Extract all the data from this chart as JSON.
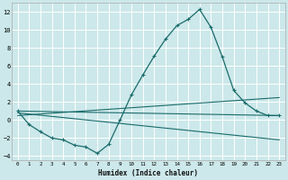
{
  "xlabel": "Humidex (Indice chaleur)",
  "ylabel": "",
  "background_color": "#cce8ea",
  "line_color": "#1a6b6b",
  "grid_color": "#ffffff",
  "xlim": [
    -0.5,
    23.5
  ],
  "ylim": [
    -4.5,
    13.0
  ],
  "xticks": [
    0,
    1,
    2,
    3,
    4,
    5,
    6,
    7,
    8,
    9,
    10,
    11,
    12,
    13,
    14,
    15,
    16,
    17,
    18,
    19,
    20,
    21,
    22,
    23
  ],
  "yticks": [
    -4,
    -2,
    0,
    2,
    4,
    6,
    8,
    10,
    12
  ],
  "line1_x": [
    0,
    1,
    2,
    3,
    4,
    5,
    6,
    7,
    8,
    9,
    10,
    11,
    12,
    13,
    14,
    15,
    16,
    17,
    18,
    19,
    20,
    21,
    22,
    23
  ],
  "line1_y": [
    1.0,
    -0.5,
    -1.3,
    -2.0,
    -2.2,
    -2.8,
    -3.0,
    -3.7,
    -2.7,
    0.0,
    2.8,
    5.0,
    7.1,
    9.0,
    10.5,
    11.2,
    12.3,
    10.3,
    7.0,
    3.3,
    1.9,
    1.0,
    0.5,
    0.5
  ],
  "line2_x": [
    0,
    23
  ],
  "line2_y": [
    1.0,
    0.5
  ],
  "line3_x": [
    0,
    23
  ],
  "line3_y": [
    0.5,
    2.5
  ],
  "line4_x": [
    0,
    23
  ],
  "line4_y": [
    0.8,
    -2.2
  ]
}
